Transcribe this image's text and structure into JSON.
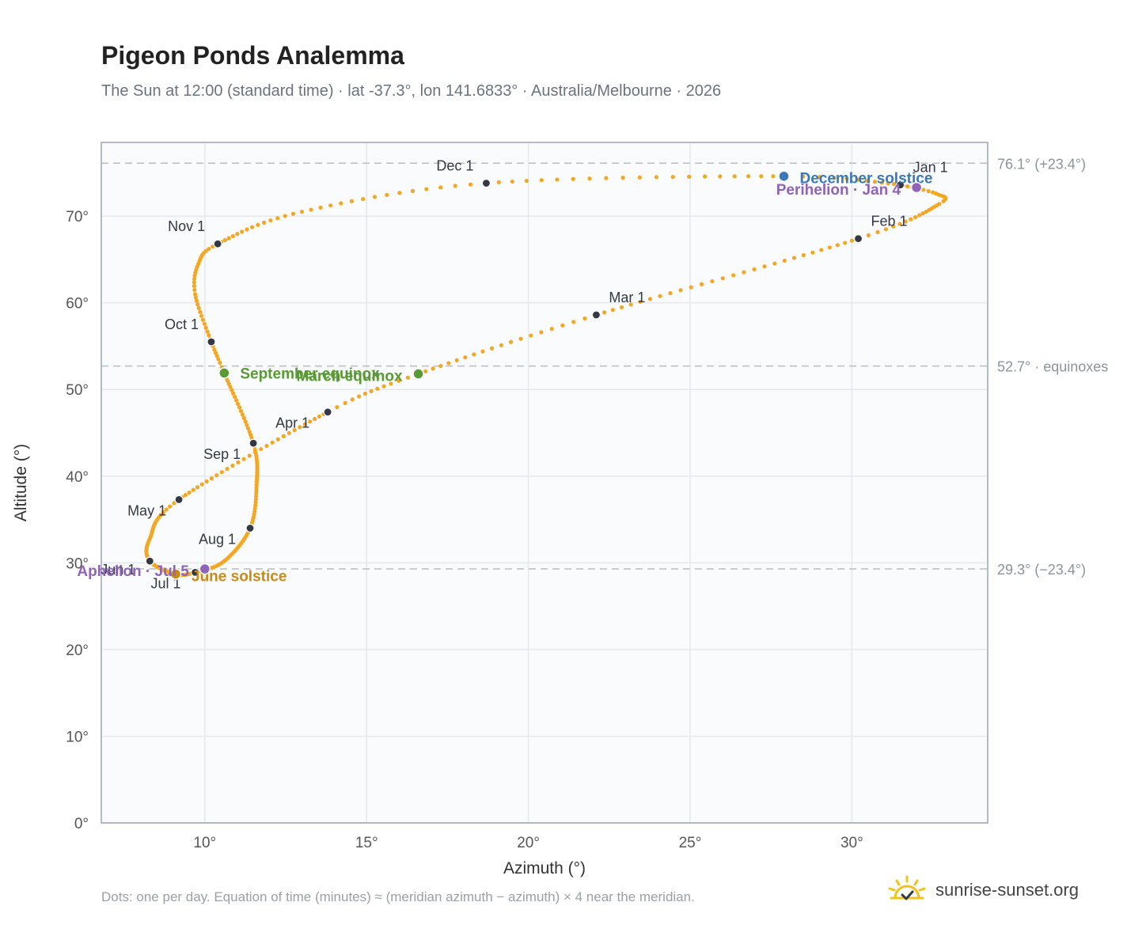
{
  "header": {
    "title": "Pigeon Ponds Analemma",
    "subtitle": "The Sun at 12:00 (standard time) · lat -37.3°, lon 141.6833° · Australia/Melbourne · 2026"
  },
  "footer": {
    "note": "Dots: one per day. Equation of time (minutes) ≈ (meridian azimuth − azimuth) × 4 near the meridian.",
    "brand": "sunrise-sunset.org"
  },
  "colors": {
    "path": "#f5a623",
    "month_marker": "#333842",
    "equinox": "#5a9a35",
    "solstice_june": "#c98a1a",
    "solstice_december": "#3a78b8",
    "apsis": "#8e63b8",
    "grid": "#e5e9ee",
    "plot_bg": "#f9fbfc",
    "reference_line": "#b8bec6"
  },
  "chart_data": {
    "type": "scatter",
    "xlabel": "Azimuth (°)",
    "ylabel": "Altitude (°)",
    "xlim": [
      6.8,
      34.2
    ],
    "ylim": [
      0,
      78.5
    ],
    "x_ticks": [
      10,
      15,
      20,
      25,
      30
    ],
    "x_tick_labels": [
      "10°",
      "15°",
      "20°",
      "25°",
      "30°"
    ],
    "y_ticks": [
      0,
      10,
      20,
      30,
      40,
      50,
      60,
      70
    ],
    "y_tick_labels": [
      "0°",
      "10°",
      "20°",
      "30°",
      "40°",
      "50°",
      "60°",
      "70°"
    ],
    "grid": true,
    "reference_lines": [
      {
        "y": 76.1,
        "label": "76.1° (+23.4°)"
      },
      {
        "y": 52.7,
        "label": "52.7° · equinoxes"
      },
      {
        "y": 29.3,
        "label": "29.3° (−23.4°)"
      }
    ],
    "month_markers": [
      {
        "label": "Jan 1",
        "x": 31.5,
        "y": 73.6
      },
      {
        "label": "Feb 1",
        "x": 30.2,
        "y": 67.4
      },
      {
        "label": "Mar 1",
        "x": 22.1,
        "y": 58.6
      },
      {
        "label": "Apr 1",
        "x": 13.8,
        "y": 47.4
      },
      {
        "label": "May 1",
        "x": 9.2,
        "y": 37.3
      },
      {
        "label": "Jun 1",
        "x": 8.3,
        "y": 30.2
      },
      {
        "label": "Jul 1",
        "x": 9.7,
        "y": 28.9
      },
      {
        "label": "Aug 1",
        "x": 11.4,
        "y": 34.0
      },
      {
        "label": "Sep 1",
        "x": 11.5,
        "y": 43.8
      },
      {
        "label": "Oct 1",
        "x": 10.2,
        "y": 55.5
      },
      {
        "label": "Nov 1",
        "x": 10.4,
        "y": 66.8
      },
      {
        "label": "Dec 1",
        "x": 18.7,
        "y": 73.8
      }
    ],
    "events": [
      {
        "label": "March equinox",
        "x": 16.6,
        "y": 51.8,
        "kind": "equinox"
      },
      {
        "label": "September equinox",
        "x": 10.6,
        "y": 51.9,
        "kind": "equinox"
      },
      {
        "label": "June solstice",
        "x": 9.1,
        "y": 28.7,
        "kind": "solstice_june"
      },
      {
        "label": "December solstice",
        "x": 27.9,
        "y": 74.6,
        "kind": "solstice_december"
      },
      {
        "label": "Perihelion · Jan 4",
        "x": 32.0,
        "y": 73.3,
        "kind": "apsis"
      },
      {
        "label": "Aphelion · Jul 5",
        "x": 10.0,
        "y": 29.3,
        "kind": "apsis"
      }
    ],
    "path_keypoints": [
      {
        "doy": 1,
        "x": 31.5,
        "y": 73.6
      },
      {
        "doy": 9,
        "x": 32.6,
        "y": 72.6
      },
      {
        "doy": 16,
        "x": 32.7,
        "y": 71.4
      },
      {
        "doy": 32,
        "x": 30.2,
        "y": 67.4
      },
      {
        "doy": 60,
        "x": 22.1,
        "y": 58.6
      },
      {
        "doy": 79,
        "x": 16.6,
        "y": 51.8
      },
      {
        "doy": 91,
        "x": 13.8,
        "y": 47.4
      },
      {
        "doy": 121,
        "x": 9.2,
        "y": 37.3
      },
      {
        "doy": 138,
        "x": 8.3,
        "y": 32.8
      },
      {
        "doy": 152,
        "x": 8.3,
        "y": 30.2
      },
      {
        "doy": 172,
        "x": 9.1,
        "y": 28.7
      },
      {
        "doy": 182,
        "x": 9.7,
        "y": 28.9
      },
      {
        "doy": 196,
        "x": 10.6,
        "y": 30.2
      },
      {
        "doy": 213,
        "x": 11.4,
        "y": 34.0
      },
      {
        "doy": 228,
        "x": 11.6,
        "y": 39.0
      },
      {
        "doy": 244,
        "x": 11.5,
        "y": 43.8
      },
      {
        "doy": 266,
        "x": 10.6,
        "y": 51.9
      },
      {
        "doy": 274,
        "x": 10.2,
        "y": 55.5
      },
      {
        "doy": 287,
        "x": 9.7,
        "y": 61.0
      },
      {
        "doy": 296,
        "x": 9.8,
        "y": 64.5
      },
      {
        "doy": 305,
        "x": 10.4,
        "y": 66.8
      },
      {
        "doy": 320,
        "x": 13.0,
        "y": 70.5
      },
      {
        "doy": 335,
        "x": 18.7,
        "y": 73.8
      },
      {
        "doy": 355,
        "x": 27.9,
        "y": 74.6
      },
      {
        "doy": 365,
        "x": 31.3,
        "y": 73.7
      }
    ]
  }
}
